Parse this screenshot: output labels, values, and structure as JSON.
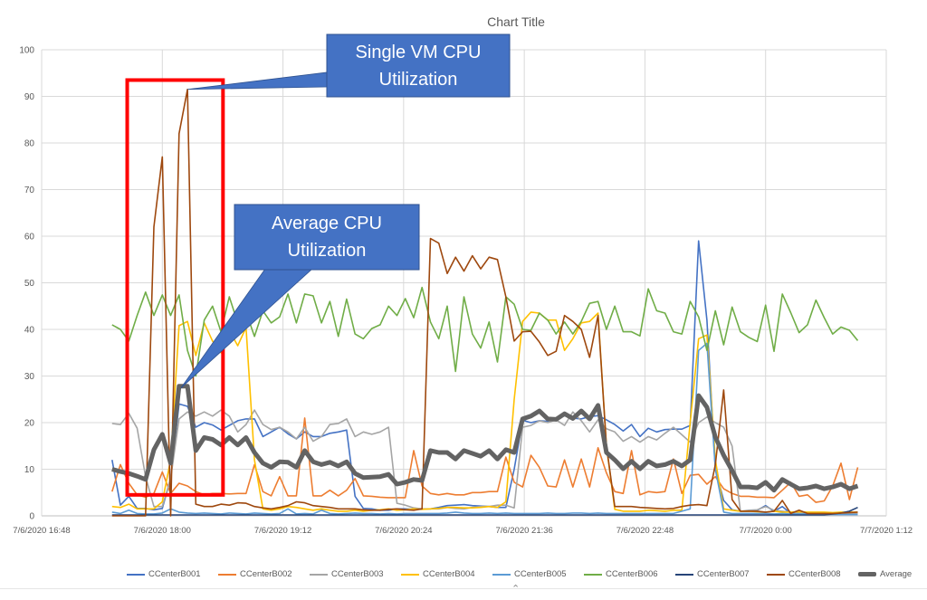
{
  "chart_data": {
    "type": "line",
    "title": "Chart Title",
    "xlabel": "",
    "ylabel": "",
    "ylim": [
      0,
      100
    ],
    "yticks": [
      "0",
      "10",
      "20",
      "30",
      "40",
      "50",
      "60",
      "70",
      "80",
      "90",
      "100"
    ],
    "xlim": [
      "7/6/2020 16:48",
      "7/7/2020 1:12"
    ],
    "xticks": [
      "7/6/2020 16:48",
      "7/6/2020 18:00",
      "7/6/2020 19:12",
      "7/6/2020 20:24",
      "7/6/2020 21:36",
      "7/6/2020 22:48",
      "7/7/2020 0:00",
      "7/7/2020 1:12"
    ],
    "grid": true,
    "legend_position": "bottom",
    "x": [
      "7/6/2020 17:30",
      "7/6/2020 17:35",
      "7/6/2020 17:40",
      "7/6/2020 17:45",
      "7/6/2020 17:50",
      "7/6/2020 17:55",
      "7/6/2020 18:00",
      "7/6/2020 18:05",
      "7/6/2020 18:10",
      "7/6/2020 18:15",
      "7/6/2020 18:20",
      "7/6/2020 18:25",
      "7/6/2020 18:30",
      "7/6/2020 18:35",
      "7/6/2020 18:40",
      "7/6/2020 18:45",
      "7/6/2020 18:50",
      "7/6/2020 18:55",
      "7/6/2020 19:00",
      "7/6/2020 19:05",
      "7/6/2020 19:10",
      "7/6/2020 19:15",
      "7/6/2020 19:20",
      "7/6/2020 19:25",
      "7/6/2020 19:30",
      "7/6/2020 19:35",
      "7/6/2020 19:40",
      "7/6/2020 19:45",
      "7/6/2020 19:50",
      "7/6/2020 19:55",
      "7/6/2020 20:00",
      "7/6/2020 20:05",
      "7/6/2020 20:10",
      "7/6/2020 20:15",
      "7/6/2020 20:20",
      "7/6/2020 20:25",
      "7/6/2020 20:30",
      "7/6/2020 20:35",
      "7/6/2020 20:40",
      "7/6/2020 20:45",
      "7/6/2020 20:50",
      "7/6/2020 20:55",
      "7/6/2020 21:00",
      "7/6/2020 21:05",
      "7/6/2020 21:10",
      "7/6/2020 21:15",
      "7/6/2020 21:20",
      "7/6/2020 21:25",
      "7/6/2020 21:30",
      "7/6/2020 21:35",
      "7/6/2020 21:40",
      "7/6/2020 21:45",
      "7/6/2020 21:50",
      "7/6/2020 21:55",
      "7/6/2020 22:00",
      "7/6/2020 22:05",
      "7/6/2020 22:10",
      "7/6/2020 22:15",
      "7/6/2020 22:20",
      "7/6/2020 22:25",
      "7/6/2020 22:30",
      "7/6/2020 22:35",
      "7/6/2020 22:40",
      "7/6/2020 22:45",
      "7/6/2020 22:50",
      "7/6/2020 22:55",
      "7/6/2020 23:00",
      "7/6/2020 23:05",
      "7/6/2020 23:10",
      "7/6/2020 23:15",
      "7/6/2020 23:20",
      "7/6/2020 23:25",
      "7/6/2020 23:30",
      "7/6/2020 23:35",
      "7/6/2020 23:40",
      "7/6/2020 23:45",
      "7/6/2020 23:50",
      "7/6/2020 23:55",
      "7/7/2020 0:00",
      "7/7/2020 0:05",
      "7/7/2020 0:10",
      "7/7/2020 0:15",
      "7/7/2020 0:20",
      "7/7/2020 0:25",
      "7/7/2020 0:30",
      "7/7/2020 0:35",
      "7/7/2020 0:40",
      "7/7/2020 0:45",
      "7/7/2020 0:50",
      "7/7/2020 0:55"
    ],
    "series": [
      {
        "name": "CCenterB001",
        "color": "#4472c4",
        "values": [
          12,
          2.3,
          4.2,
          1.6,
          1.6,
          1.3,
          1.6,
          8,
          24,
          23.5,
          19,
          20,
          19.5,
          18.4,
          19.4,
          20.4,
          20.8,
          20.8,
          17,
          18,
          19,
          17.6,
          16.5,
          18,
          17,
          17,
          17.7,
          18,
          18.4,
          4.2,
          1.6,
          1.5,
          1.2,
          1.2,
          1.5,
          1.5,
          1.4,
          1.5,
          1.5,
          1.8,
          2.2,
          2.3,
          2.4,
          2.2,
          2.1,
          2,
          1.8,
          1.8,
          10,
          20.5,
          20,
          20.4,
          20.3,
          20.8,
          21.5,
          21,
          20.8,
          21.3,
          21.5,
          20.6,
          19.6,
          18.2,
          19.6,
          17,
          18.8,
          18,
          18.5,
          18.6,
          18.6,
          19.4,
          59,
          42,
          10,
          3.3,
          1.3,
          1,
          1,
          1.2,
          2.2,
          1,
          2,
          0.5,
          0.3,
          0.3,
          0.3,
          0.3,
          0.3,
          0.3,
          0.3,
          0.3
        ]
      },
      {
        "name": "CCenterB002",
        "color": "#ed7d31",
        "values": [
          5.2,
          11,
          7,
          4.5,
          4,
          4.8,
          9.4,
          4.8,
          7,
          6.4,
          5.2,
          4.5,
          4.8,
          4.8,
          4.7,
          4.8,
          4.8,
          11,
          5.2,
          4.3,
          8.4,
          4.3,
          4.3,
          21,
          4.3,
          4.3,
          5.5,
          4.3,
          5.5,
          8,
          4.3,
          4.2,
          4,
          3.9,
          3.9,
          3.9,
          14,
          6.4,
          4.8,
          4.5,
          4.8,
          4.5,
          4.5,
          5,
          5,
          5.2,
          5.2,
          12.6,
          7.2,
          6.2,
          13,
          10.4,
          6.4,
          6.2,
          12,
          6.2,
          12.2,
          6.2,
          14.6,
          9.2,
          5.2,
          4.8,
          14,
          4.5,
          5.2,
          5,
          5.2,
          12.2,
          4.8,
          8.7,
          8.9,
          6.8,
          8.4,
          5.8,
          4.8,
          4.2,
          4.2,
          4,
          4,
          3.9,
          5.5,
          7.2,
          4.2,
          4.5,
          2.9,
          3.2,
          6.4,
          11.3,
          3.5,
          10.4
        ]
      },
      {
        "name": "CCenterB003",
        "color": "#a5a5a5",
        "values": [
          19.8,
          19.6,
          22,
          18.8,
          8.4,
          2,
          2,
          8,
          20.8,
          22.3,
          21.4,
          22.3,
          21.4,
          22.7,
          21.4,
          18,
          19.6,
          22.7,
          19.6,
          18.5,
          19,
          18,
          16.5,
          19,
          16,
          17,
          19.6,
          19.8,
          20.8,
          17,
          18,
          17.5,
          18,
          19,
          2.7,
          2.3,
          1.7,
          1.5,
          1.5,
          1.5,
          1.8,
          1.6,
          1.5,
          1.8,
          2,
          2,
          2.3,
          2.3,
          1.7,
          19,
          19.4,
          20.4,
          20,
          20.6,
          19.4,
          22.3,
          20.4,
          18,
          20.6,
          18.7,
          18,
          16,
          17,
          15.8,
          17,
          16.3,
          17.7,
          19,
          17.4,
          15.8,
          20,
          21.2,
          20,
          19,
          15,
          1,
          1.2,
          1.3,
          2,
          1.2,
          1,
          0.8,
          0.6,
          0.5,
          0.5,
          0.5,
          0.5,
          0.5,
          0.5,
          0.5
        ]
      },
      {
        "name": "CCenterB004",
        "color": "#ffc000",
        "values": [
          2,
          1.8,
          2.5,
          1.5,
          1.5,
          1.5,
          3,
          12,
          40.8,
          41.7,
          34.4,
          41.4,
          37.5,
          35,
          39.8,
          36.5,
          40.4,
          12,
          1.5,
          1.2,
          1.5,
          2,
          1.8,
          1.5,
          1.2,
          1.5,
          1.2,
          1,
          1,
          1.2,
          1,
          1.2,
          1.3,
          1.5,
          1.2,
          1.3,
          1.5,
          1.4,
          1.5,
          1.6,
          1.8,
          1.8,
          1.7,
          1.7,
          1.8,
          2,
          1.8,
          3,
          25,
          41.7,
          43.7,
          43.5,
          42,
          42,
          35.5,
          38,
          41.4,
          41.7,
          43.5,
          15,
          1.4,
          1,
          1,
          1,
          1.2,
          1.1,
          1,
          1.2,
          1.2,
          20,
          38,
          38.8,
          12,
          1.5,
          1.2,
          1,
          1,
          0.9,
          0.8,
          1,
          0.8,
          0.8,
          0.9,
          0.8,
          0.8,
          0.8,
          0.7,
          0.8,
          0.8,
          0.8
        ]
      },
      {
        "name": "CCenterB005",
        "color": "#5b9bd5",
        "values": [
          0.8,
          0.5,
          1.2,
          0.5,
          0.4,
          0.4,
          0.6,
          1.5,
          0.8,
          0.6,
          0.5,
          0.6,
          0.5,
          0.4,
          0.6,
          0.5,
          0.4,
          0.6,
          0.5,
          0.4,
          0.5,
          1.5,
          0.4,
          0.5,
          0.4,
          1.2,
          0.5,
          0.4,
          0.5,
          0.6,
          0.5,
          0.5,
          0.4,
          0.5,
          0.4,
          0.5,
          0.5,
          0.5,
          0.5,
          0.5,
          0.6,
          0.8,
          0.6,
          0.5,
          0.5,
          0.6,
          0.5,
          0.6,
          0.5,
          0.5,
          0.5,
          0.5,
          0.6,
          0.5,
          0.5,
          0.6,
          0.6,
          0.5,
          0.6,
          0.5,
          0.5,
          0.5,
          0.5,
          0.5,
          0.5,
          0.5,
          0.5,
          0.5,
          1,
          1.5,
          35.5,
          37,
          10,
          0.8,
          0.5,
          0.5,
          0.5,
          0.5,
          0.5,
          0.4,
          0.5,
          0.4,
          0.4,
          0.4,
          0.4,
          0.3,
          0.3,
          0.3,
          0.3,
          0.3
        ]
      },
      {
        "name": "CCenterB006",
        "color": "#70ad47",
        "values": [
          41,
          40,
          37.5,
          43,
          48,
          43,
          47.4,
          43,
          47.4,
          35.5,
          30,
          42,
          45,
          39.5,
          47,
          41.4,
          43.7,
          38.5,
          44,
          41.4,
          42.7,
          47.6,
          41.4,
          47.6,
          47.2,
          41.4,
          46,
          38.5,
          46.5,
          39,
          38,
          40.2,
          41,
          45,
          43,
          46.6,
          42.5,
          49,
          41.6,
          38,
          45,
          31,
          47,
          39,
          36,
          41.6,
          33,
          47,
          45.4,
          40,
          39.8,
          43.5,
          42,
          39,
          41.6,
          39,
          41.7,
          45.6,
          46,
          40,
          45,
          39.5,
          39.5,
          38.6,
          48.7,
          44,
          43.5,
          39.5,
          39,
          46,
          42.7,
          35.5,
          44,
          36.7,
          44.8,
          39.5,
          38.3,
          37.4,
          45.2,
          35.3,
          47.6,
          43.6,
          39.3,
          41,
          46.3,
          42.5,
          39,
          40.5,
          39.8,
          37.6
        ]
      },
      {
        "name": "CCenterB007",
        "color": "#264478",
        "values": [
          0.2,
          0.2,
          0.2,
          0.2,
          0.2,
          0.2,
          0.2,
          0.2,
          0.2,
          0.2,
          0.2,
          0.2,
          0.2,
          0.2,
          0.2,
          0.2,
          0.2,
          0.2,
          0.2,
          0.2,
          0.2,
          0.2,
          0.2,
          0.2,
          0.2,
          0.2,
          0.2,
          0.2,
          0.2,
          0.2,
          0.2,
          0.2,
          0.2,
          0.2,
          0.2,
          0.2,
          0.2,
          0.2,
          0.2,
          0.2,
          0.2,
          0.2,
          0.2,
          0.2,
          0.2,
          0.2,
          0.2,
          0.2,
          0.2,
          0.2,
          0.2,
          0.2,
          0.2,
          0.2,
          0.2,
          0.2,
          0.2,
          0.2,
          0.2,
          0.2,
          0.2,
          0.2,
          0.2,
          0.2,
          0.2,
          0.2,
          0.2,
          0.2,
          0.2,
          0.2,
          0.2,
          0.2,
          0.2,
          0.2,
          0.2,
          0.2,
          0.2,
          0.2,
          0.2,
          0.2,
          0.2,
          0.2,
          0.2,
          0.2,
          0.2,
          0.2,
          0.4,
          0.6,
          1,
          1.8
        ]
      },
      {
        "name": "CCenterB008",
        "color": "#9e480e",
        "values": [
          0,
          0,
          0,
          0,
          0,
          62,
          77,
          0,
          82,
          91.5,
          2.5,
          2,
          2,
          2.5,
          2.3,
          2.8,
          2.7,
          2,
          1.7,
          1.5,
          1.8,
          2.2,
          3,
          2.8,
          2.2,
          2,
          1.8,
          1.5,
          1.5,
          1.5,
          1.3,
          1.2,
          1.2,
          1.4,
          1.5,
          1.3,
          1.2,
          1.5,
          59.5,
          58.5,
          52,
          55.5,
          52.5,
          55.8,
          53,
          55.5,
          55,
          47,
          37.5,
          39.5,
          39.6,
          37.3,
          34.4,
          35.3,
          43,
          41.7,
          40,
          34,
          43,
          15,
          2,
          2,
          2,
          1.8,
          1.7,
          1.6,
          1.5,
          1.6,
          2,
          2.3,
          2.4,
          2.2,
          11,
          27,
          3.5,
          1,
          1,
          1,
          0.8,
          1,
          3.3,
          0.5,
          1.2,
          0.5,
          0.5,
          0.5,
          0.5,
          0.6,
          0.7,
          0.8
        ]
      },
      {
        "name": "Average",
        "color": "#636363",
        "values": [
          10,
          9.5,
          9.1,
          8.5,
          7.8,
          14.2,
          17.5,
          11.3,
          27.8,
          27.8,
          14,
          16.8,
          16.4,
          15.2,
          16.8,
          15.2,
          16.8,
          13.6,
          11.3,
          10.4,
          11.6,
          11.5,
          10.4,
          14,
          11.6,
          11,
          11.5,
          10.7,
          11.6,
          9.1,
          8.2,
          8.3,
          8.4,
          8.9,
          6.8,
          7.2,
          7.8,
          7.6,
          14,
          13.6,
          13.6,
          12.2,
          14,
          13.4,
          12.8,
          14,
          12.2,
          14.2,
          13.6,
          20.8,
          21.4,
          22.5,
          20.8,
          20.7,
          21.9,
          20.9,
          22.5,
          20.8,
          23.7,
          13.6,
          12,
          10.1,
          11.7,
          10.1,
          11.7,
          10.7,
          11,
          11.7,
          10.7,
          12,
          25.8,
          23.3,
          16.9,
          13,
          9.7,
          6.2,
          6.2,
          6,
          7.2,
          5.5,
          7.8,
          6.8,
          5.8,
          6,
          6.4,
          5.8,
          6.2,
          6.8,
          5.8,
          6.4
        ]
      }
    ],
    "annotations": [
      {
        "text": "Single VM CPU\nUtilization",
        "color": "#4472c4",
        "points_to": {
          "x": "7/6/2020 18:15",
          "y": 91.5
        }
      },
      {
        "text": "Average CPU\nUtilization",
        "color": "#4472c4",
        "points_to": {
          "x": "7/6/2020 18:10",
          "y": 27.8
        }
      }
    ],
    "highlight_box": {
      "color": "#ff0000",
      "x_range": [
        "7/6/2020 17:45",
        "7/6/2020 18:40"
      ],
      "y_range": [
        4.5,
        93.5
      ]
    }
  }
}
